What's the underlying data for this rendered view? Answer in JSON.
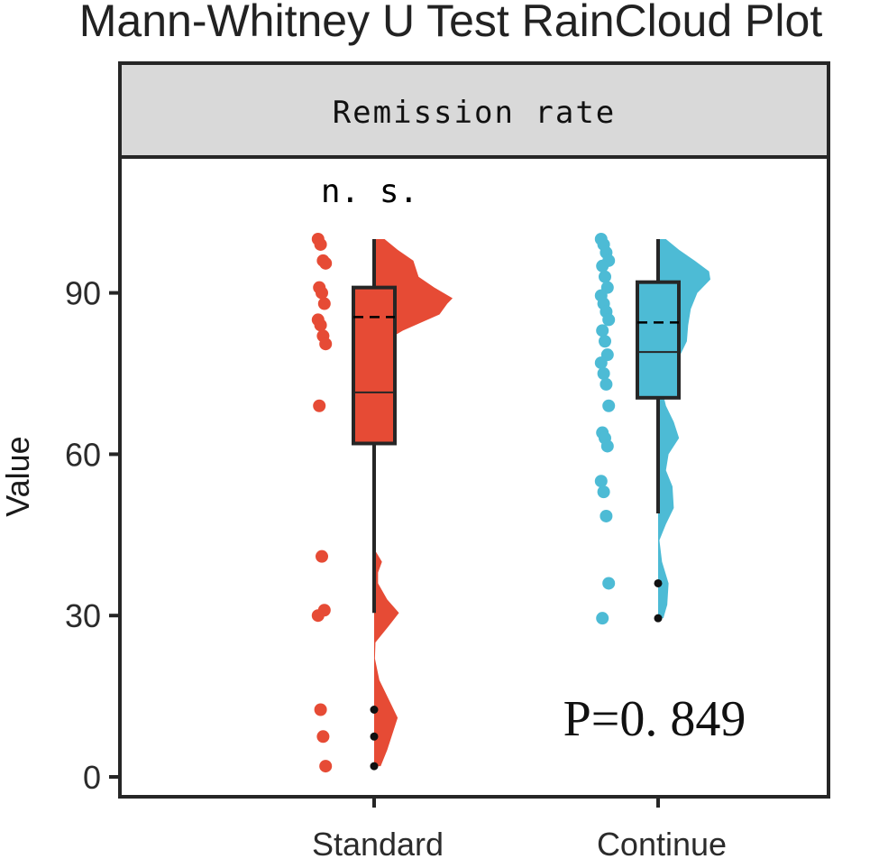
{
  "title": "Mann-Whitney U Test RainCloud Plot",
  "chart_data": {
    "type": "raincloud",
    "facet_label": "Remission rate",
    "ylabel": "Value",
    "xlabel": "",
    "categories": [
      "Standard",
      "Continue"
    ],
    "y_ticks": [
      "0",
      "30",
      "60",
      "90"
    ],
    "ylim": [
      -3,
      115
    ],
    "grid": false,
    "significance_label": "n. s.",
    "annotation": "P=0. 849",
    "colors": {
      "Standard": "#e64b35",
      "Continue": "#4dbbd5",
      "strip_bg": "#d9d9d9",
      "outline": "#262626"
    },
    "groups": [
      {
        "name": "Standard",
        "points": [
          100,
          99,
          96,
          95.5,
          91,
          90,
          88,
          85,
          84,
          82,
          80.5,
          69,
          41,
          31,
          30,
          12.5,
          7.5,
          2
        ],
        "box": {
          "min": 30.5,
          "q1": 62,
          "median": 71.5,
          "q3": 91,
          "max": 100,
          "mean": 85.5
        },
        "outliers": [
          12.5,
          7.5,
          2
        ],
        "density": [
          [
            2,
            0.25
          ],
          [
            5,
            0.5
          ],
          [
            8,
            0.7
          ],
          [
            11,
            0.9
          ],
          [
            14,
            0.6
          ],
          [
            18,
            0.2
          ],
          [
            22,
            0.03
          ],
          [
            25,
            0.05
          ],
          [
            28,
            0.55
          ],
          [
            30.5,
            0.95
          ],
          [
            33,
            0.5
          ],
          [
            36,
            0.15
          ],
          [
            38,
            0.15
          ],
          [
            40,
            0.3
          ],
          [
            42,
            0.05
          ],
          [
            80,
            0.05
          ],
          [
            83,
            1.1
          ],
          [
            86,
            2.5
          ],
          [
            88,
            2.8
          ],
          [
            89,
            3.0
          ],
          [
            91,
            2.3
          ],
          [
            93,
            1.7
          ],
          [
            96,
            1.5
          ],
          [
            98,
            0.9
          ],
          [
            100,
            0.4
          ]
        ]
      },
      {
        "name": "Continue",
        "points": [
          100,
          99,
          97.5,
          96,
          95,
          93,
          91,
          89.5,
          88,
          86.5,
          85,
          83,
          81,
          78.5,
          77,
          75,
          73,
          69,
          64,
          63,
          61.5,
          55,
          53,
          48.5,
          36,
          29.5
        ],
        "box": {
          "min": 49,
          "q1": 70.5,
          "median": 79,
          "q3": 92,
          "max": 100,
          "mean": 84.5
        },
        "outliers": [
          36,
          29.5
        ],
        "density": [
          [
            29.5,
            0.2
          ],
          [
            32,
            0.35
          ],
          [
            36,
            0.4
          ],
          [
            40,
            0.15
          ],
          [
            44,
            0.05
          ],
          [
            47,
            0.3
          ],
          [
            50,
            0.6
          ],
          [
            54,
            0.55
          ],
          [
            57,
            0.3
          ],
          [
            60,
            0.4
          ],
          [
            63,
            0.8
          ],
          [
            66,
            0.6
          ],
          [
            69,
            0.3
          ],
          [
            72,
            0.15
          ],
          [
            75,
            0.3
          ],
          [
            78,
            0.8
          ],
          [
            81,
            1.1
          ],
          [
            84,
            1.15
          ],
          [
            87,
            1.25
          ],
          [
            90,
            1.5
          ],
          [
            92.5,
            2.0
          ],
          [
            94,
            1.95
          ],
          [
            96,
            1.4
          ],
          [
            98,
            0.8
          ],
          [
            100,
            0.3
          ]
        ]
      }
    ]
  }
}
